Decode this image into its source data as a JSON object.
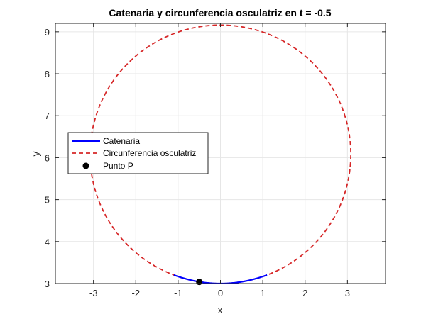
{
  "chart_data": {
    "type": "line",
    "title": "Catenaria y circunferencia osculatriz en t = -0.5",
    "xlabel": "x",
    "ylabel": "y",
    "xlim": [
      -3.9,
      3.9
    ],
    "ylim": [
      3,
      9.2
    ],
    "xticks": [
      -3,
      -2,
      -1,
      0,
      1,
      2,
      3
    ],
    "yticks": [
      3,
      4,
      5,
      6,
      7,
      8,
      9
    ],
    "grid": true,
    "legend_position": "middle-left",
    "series": [
      {
        "name": "Catenaria",
        "style": "solid",
        "color": "#0000ff",
        "equation": "y = 3*cosh(x/3)",
        "x_range": [
          -1.1,
          1.1
        ]
      },
      {
        "name": "Circunferencia osculatriz",
        "style": "dashed",
        "color": "#d62728",
        "center": [
          0,
          6.08
        ],
        "radius": 3.08
      },
      {
        "name": "Punto P",
        "style": "marker",
        "color": "#000000",
        "x": [
          -0.5
        ],
        "y": [
          3.04
        ]
      }
    ]
  }
}
